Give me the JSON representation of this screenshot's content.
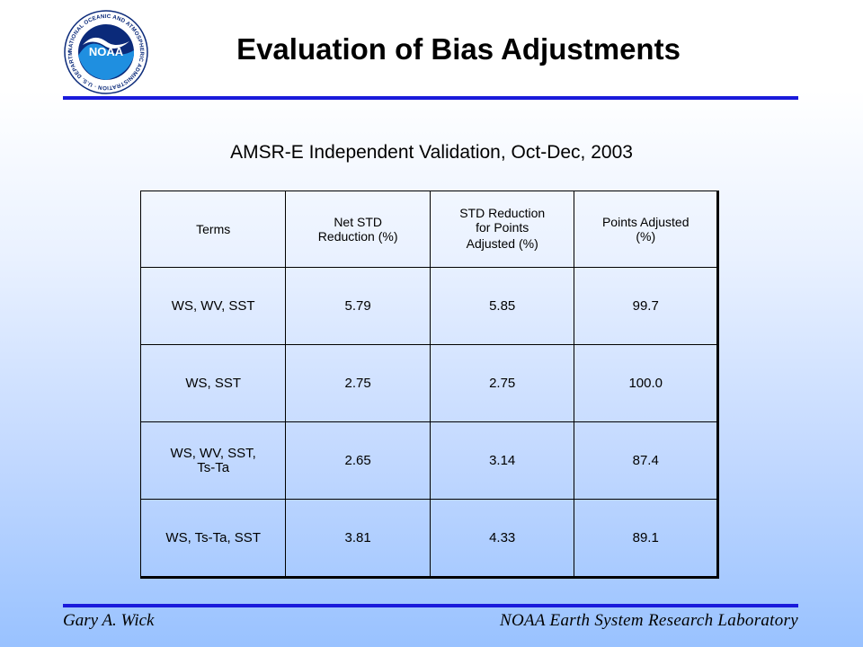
{
  "logo": {
    "text": "NOAA",
    "ring_text": "NATIONAL OCEANIC AND ATMOSPHERIC ADMINISTRATION · U.S. DEPARTMENT OF COMMERCE"
  },
  "header": {
    "title": "Evaluation of Bias Adjustments"
  },
  "subtitle": "AMSR-E Independent Validation, Oct-Dec, 2003",
  "table": {
    "headers": [
      {
        "line1": "Terms",
        "line2": "",
        "line3": ""
      },
      {
        "line1": "Net STD",
        "line2": "Reduction (%)",
        "line3": ""
      },
      {
        "line1": "STD Reduction",
        "line2": "for Points",
        "line3": "Adjusted (%)"
      },
      {
        "line1": "Points Adjusted",
        "line2": "(%)",
        "line3": ""
      }
    ],
    "rows": [
      {
        "terms_line1": "WS, WV, SST",
        "terms_line2": "",
        "net": "5.79",
        "std": "5.85",
        "points": "99.7"
      },
      {
        "terms_line1": "WS, SST",
        "terms_line2": "",
        "net": "2.75",
        "std": "2.75",
        "points": "100.0"
      },
      {
        "terms_line1": "WS, WV, SST,",
        "terms_line2": "Ts-Ta",
        "net": "2.65",
        "std": "3.14",
        "points": "87.4"
      },
      {
        "terms_line1": "WS, Ts-Ta, SST",
        "terms_line2": "",
        "net": "3.81",
        "std": "4.33",
        "points": "89.1"
      }
    ]
  },
  "footer": {
    "author": "Gary A. Wick",
    "organization": "NOAA Earth System Research Laboratory"
  },
  "colors": {
    "rule": "#1a1adb",
    "logo_blue": "#1f5fbf",
    "logo_navy": "#0b2a7a"
  }
}
